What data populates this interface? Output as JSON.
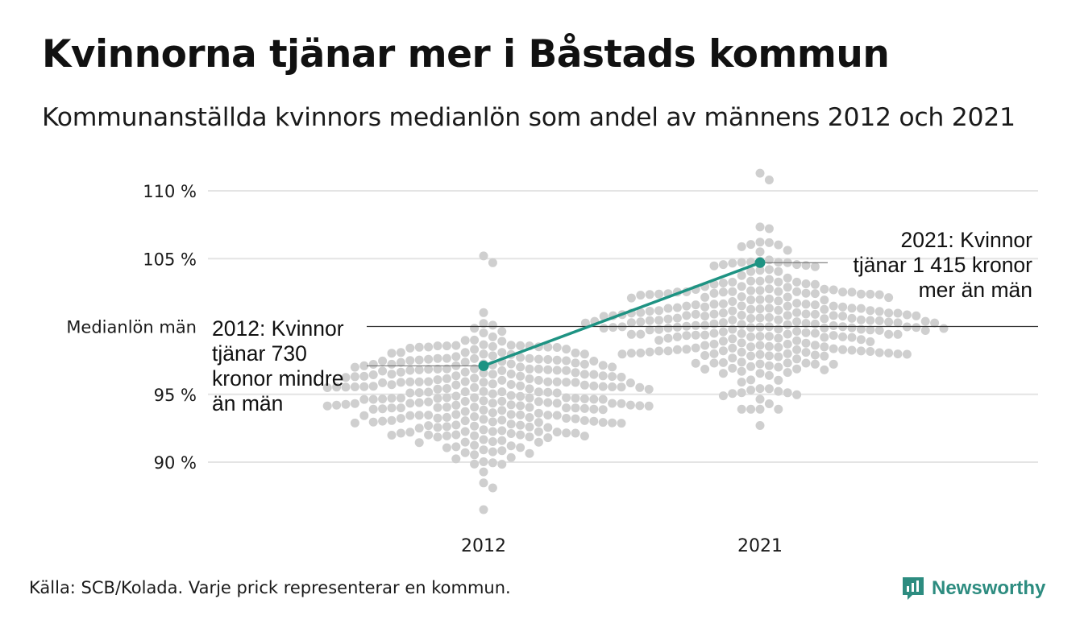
{
  "header": {
    "title": "Kvinnorna tjänar mer i Båstads kommun",
    "subtitle": "Kommunanställda kvinnors medianlön som andel av männens 2012 och 2021"
  },
  "footer": {
    "source": "Källa: SCB/Kolada. Varje prick representerar en kommun.",
    "brand": "Newsworthy"
  },
  "colors": {
    "accent": "#1e9383",
    "dots": "#cfcfcf",
    "grid": "#e4e4e4",
    "reference_line": "#333333"
  },
  "chart_data": {
    "type": "scatter",
    "variant": "beeswarm",
    "x": [
      "2012",
      "2021"
    ],
    "y_ticks": [
      {
        "value": 90,
        "label": "90 %"
      },
      {
        "value": 95,
        "label": "95 %"
      },
      {
        "value": 105,
        "label": "105 %"
      },
      {
        "value": 110,
        "label": "110 %"
      }
    ],
    "ylim": [
      86,
      111.5
    ],
    "reference_line": {
      "value": 100,
      "label": "Medianlön män"
    },
    "highlight": {
      "values": [
        {
          "x": "2012",
          "y": 97.1
        },
        {
          "x": "2021",
          "y": 104.7
        }
      ],
      "annotations": [
        {
          "x": "2012",
          "lines": [
            "2012: Kvinnor",
            "tjänar 730",
            "kronor mindre",
            "än män"
          ]
        },
        {
          "x": "2021",
          "lines": [
            "2021: Kvinnor",
            "tjänar 1 415 kronor",
            "mer än män"
          ]
        }
      ]
    },
    "distributions": [
      {
        "x": "2012",
        "count": 290,
        "median": 94.9,
        "spread": 2.45,
        "min": 86.5,
        "max": 105.2
      },
      {
        "x": "2021",
        "count": 290,
        "median": 100.4,
        "spread": 2.5,
        "min": 92.7,
        "max": 111.3
      }
    ]
  }
}
